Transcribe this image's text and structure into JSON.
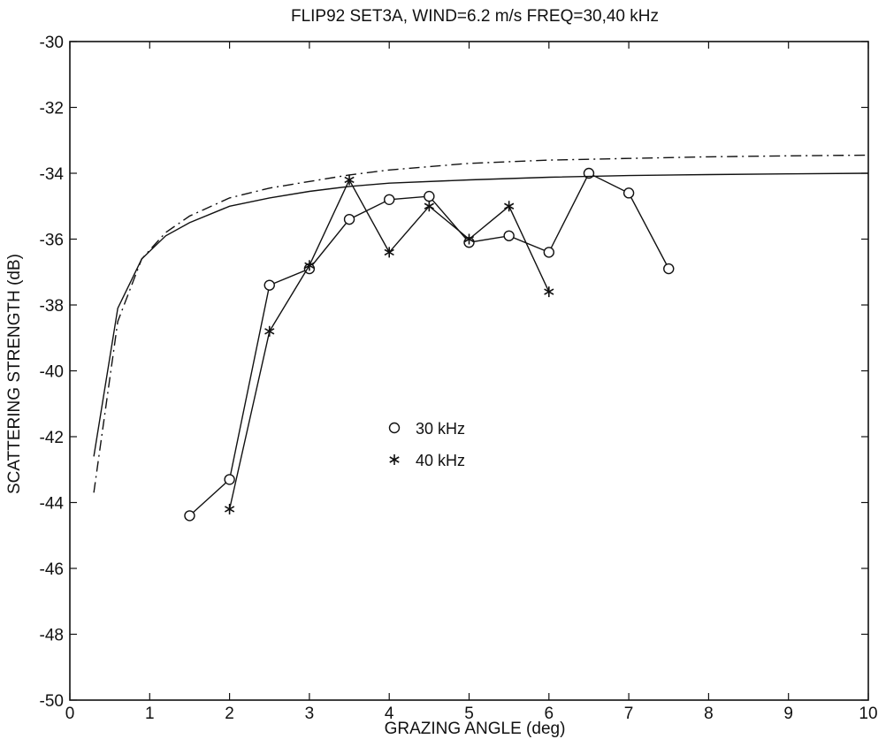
{
  "chart_data": {
    "type": "line",
    "title": "FLIP92 SET3A, WIND=6.2 m/s FREQ=30,40 kHz",
    "xlabel": "GRAZING ANGLE (deg)",
    "ylabel": "SCATTERING STRENGTH (dB)",
    "xlim": [
      0,
      10
    ],
    "ylim": [
      -50,
      -30
    ],
    "x_ticks": [
      "0",
      "1",
      "2",
      "3",
      "4",
      "5",
      "6",
      "7",
      "8",
      "9",
      "10"
    ],
    "y_ticks": [
      "-50",
      "-48",
      "-46",
      "-44",
      "-42",
      "-40",
      "-38",
      "-36",
      "-34",
      "-32",
      "-30"
    ],
    "grid": false,
    "legend_position": "center",
    "series": [
      {
        "name": "30 kHz",
        "marker": "circle",
        "line_style": "solid",
        "x": [
          1.5,
          2.0,
          2.5,
          3.0,
          3.5,
          4.0,
          4.5,
          5.0,
          5.5,
          6.0,
          6.5,
          7.0,
          7.5
        ],
        "y": [
          -44.4,
          -43.3,
          -37.4,
          -36.9,
          -35.4,
          -34.8,
          -34.7,
          -36.1,
          -35.9,
          -36.4,
          -34.0,
          -34.6,
          -36.9
        ]
      },
      {
        "name": "40 kHz",
        "marker": "asterisk",
        "line_style": "solid",
        "x": [
          2.0,
          2.5,
          3.0,
          3.5,
          4.0,
          4.5,
          5.0,
          5.5,
          6.0
        ],
        "y": [
          -44.2,
          -38.8,
          -36.8,
          -34.2,
          -36.4,
          -35.0,
          -36.0,
          -35.0,
          -37.6
        ]
      },
      {
        "marker": "none",
        "line_style": "solid",
        "x": [
          0.3,
          0.6,
          0.9,
          1.2,
          1.5,
          2.0,
          2.5,
          3.0,
          3.5,
          4.0,
          5.0,
          6.0,
          7.0,
          8.0,
          9.0,
          10.0
        ],
        "y": [
          -42.6,
          -38.1,
          -36.6,
          -35.9,
          -35.5,
          -35.0,
          -34.75,
          -34.55,
          -34.4,
          -34.3,
          -34.2,
          -34.12,
          -34.07,
          -34.04,
          -34.02,
          -34.0
        ]
      },
      {
        "marker": "none",
        "line_style": "dash-dot",
        "x": [
          0.3,
          0.6,
          0.9,
          1.2,
          1.5,
          2.0,
          2.5,
          3.0,
          3.5,
          4.0,
          5.0,
          6.0,
          7.0,
          8.0,
          9.0,
          10.0
        ],
        "y": [
          -43.7,
          -38.5,
          -36.6,
          -35.8,
          -35.3,
          -34.75,
          -34.45,
          -34.25,
          -34.05,
          -33.9,
          -33.7,
          -33.6,
          -33.55,
          -33.5,
          -33.47,
          -33.45
        ]
      }
    ]
  }
}
